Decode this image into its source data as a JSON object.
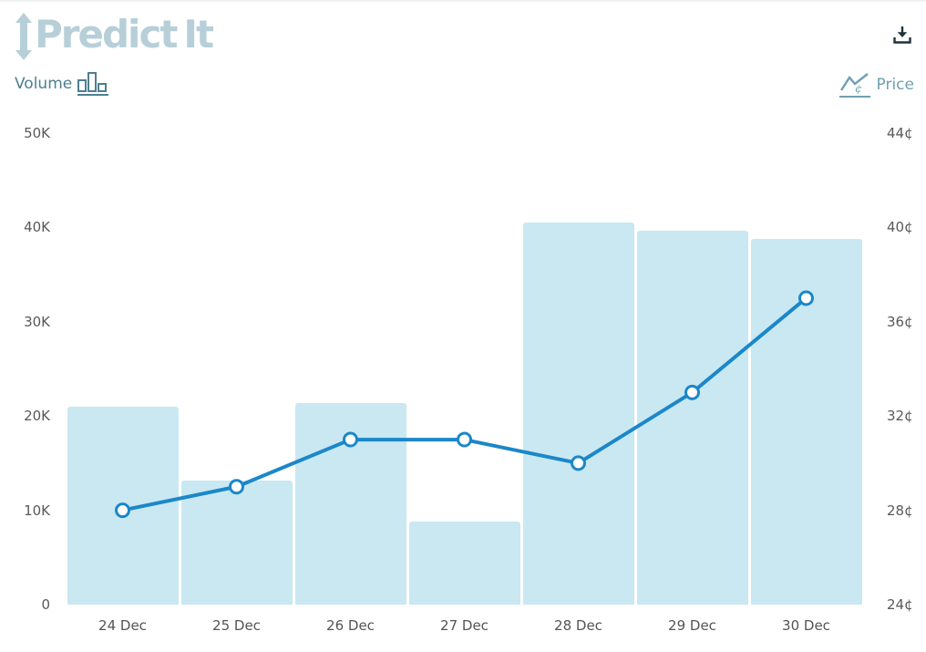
{
  "header": {
    "logo_predict": "Predict",
    "logo_it": "It"
  },
  "legend": {
    "volume_label": "Volume",
    "price_label": "Price"
  },
  "icons": {
    "logo_arrow": "up-down-arrow-icon",
    "download": "download-icon",
    "volume": "bar-chart-icon",
    "price": "line-chart-icon"
  },
  "colors": {
    "bar_fill": "#c9e8f2",
    "line_stroke": "#1b87c9",
    "marker_fill": "#ffffff",
    "axis_text": "#595959",
    "logo": "#b7cfd8",
    "legend_volume": "#4d7f91",
    "legend_price": "#6fa0b2",
    "download_icon": "#20323a"
  },
  "chart_data": {
    "type": "bar",
    "subtype": "combo-bar-line",
    "categories": [
      "24 Dec",
      "25 Dec",
      "26 Dec",
      "27 Dec",
      "28 Dec",
      "29 Dec",
      "30 Dec"
    ],
    "series": [
      {
        "name": "Volume",
        "type": "bar",
        "axis": "left",
        "values": [
          21000,
          13200,
          21400,
          8800,
          40500,
          39700,
          38800
        ]
      },
      {
        "name": "Price",
        "type": "line",
        "axis": "right",
        "values": [
          28,
          29,
          31,
          31,
          30,
          33,
          37
        ]
      }
    ],
    "left_axis": {
      "label": "Volume",
      "min": 0,
      "max": 50000,
      "ticks": [
        "50K",
        "40K",
        "30K",
        "20K",
        "10K",
        "0"
      ]
    },
    "right_axis": {
      "label": "Price",
      "min": 24,
      "max": 44,
      "ticks": [
        "44¢",
        "40¢",
        "36¢",
        "32¢",
        "28¢",
        "24¢"
      ]
    },
    "grid": false,
    "legend_position": "top"
  }
}
